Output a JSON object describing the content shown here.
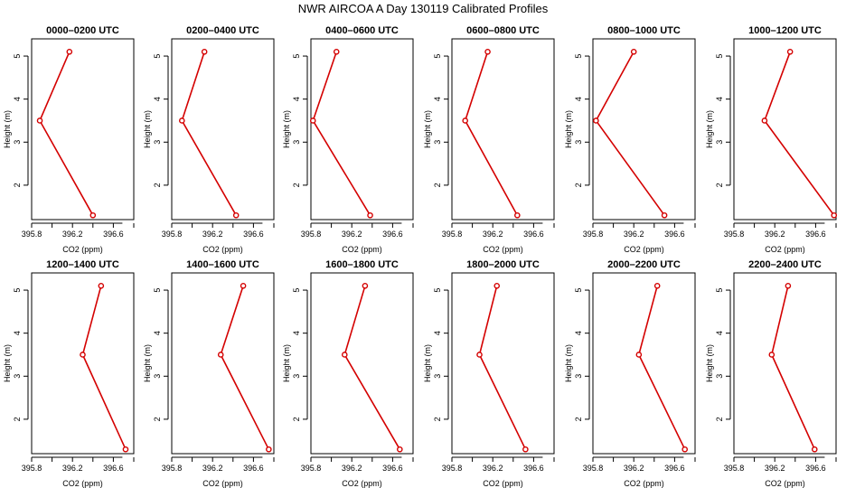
{
  "figure": {
    "title": "NWR AIRCOA A  Day 130119  Calibrated Profiles",
    "series_color": "#d40000"
  },
  "chart_data": [
    {
      "type": "line",
      "title": "0000–0200 UTC",
      "xlabel": "CO2 (ppm)",
      "ylabel": "Height (m)",
      "x_ticks": [
        "395.8",
        "396.2",
        "396.6"
      ],
      "y_ticks": [
        "2",
        "3",
        "4",
        "5"
      ],
      "xlim": [
        395.8,
        396.8
      ],
      "ylim": [
        1.2,
        5.4
      ],
      "x": [
        396.4,
        395.88,
        396.17
      ],
      "y": [
        1.3,
        3.5,
        5.1
      ]
    },
    {
      "type": "line",
      "title": "0200–0400 UTC",
      "xlabel": "CO2 (ppm)",
      "ylabel": "Height (m)",
      "x_ticks": [
        "395.8",
        "396.2",
        "396.6"
      ],
      "y_ticks": [
        "2",
        "3",
        "4",
        "5"
      ],
      "xlim": [
        395.8,
        396.8
      ],
      "ylim": [
        1.2,
        5.4
      ],
      "x": [
        396.43,
        395.9,
        396.12
      ],
      "y": [
        1.3,
        3.5,
        5.1
      ]
    },
    {
      "type": "line",
      "title": "0400–0600 UTC",
      "xlabel": "CO2 (ppm)",
      "ylabel": "Height (m)",
      "x_ticks": [
        "395.8",
        "396.2",
        "396.6"
      ],
      "y_ticks": [
        "2",
        "3",
        "4",
        "5"
      ],
      "xlim": [
        395.8,
        396.8
      ],
      "ylim": [
        1.2,
        5.4
      ],
      "x": [
        396.38,
        395.82,
        396.05
      ],
      "y": [
        1.3,
        3.5,
        5.1
      ]
    },
    {
      "type": "line",
      "title": "0600–0800 UTC",
      "xlabel": "CO2 (ppm)",
      "ylabel": "Height (m)",
      "x_ticks": [
        "395.8",
        "396.2",
        "396.6"
      ],
      "y_ticks": [
        "2",
        "3",
        "4",
        "5"
      ],
      "xlim": [
        395.8,
        396.8
      ],
      "ylim": [
        1.2,
        5.4
      ],
      "x": [
        396.44,
        395.93,
        396.15
      ],
      "y": [
        1.3,
        3.5,
        5.1
      ]
    },
    {
      "type": "line",
      "title": "0800–1000 UTC",
      "xlabel": "CO2 (ppm)",
      "ylabel": "Height (m)",
      "x_ticks": [
        "395.8",
        "396.2",
        "396.6"
      ],
      "y_ticks": [
        "2",
        "3",
        "4",
        "5"
      ],
      "xlim": [
        395.8,
        396.8
      ],
      "ylim": [
        1.2,
        5.4
      ],
      "x": [
        396.5,
        395.83,
        396.2
      ],
      "y": [
        1.3,
        3.5,
        5.1
      ]
    },
    {
      "type": "line",
      "title": "1000–1200 UTC",
      "xlabel": "CO2 (ppm)",
      "ylabel": "Height (m)",
      "x_ticks": [
        "395.8",
        "396.2",
        "396.6"
      ],
      "y_ticks": [
        "2",
        "3",
        "4",
        "5"
      ],
      "xlim": [
        395.8,
        396.8
      ],
      "ylim": [
        1.2,
        5.4
      ],
      "x": [
        396.78,
        396.1,
        396.35
      ],
      "y": [
        1.3,
        3.5,
        5.1
      ]
    },
    {
      "type": "line",
      "title": "1200–1400 UTC",
      "xlabel": "CO2 (ppm)",
      "ylabel": "Height (m)",
      "x_ticks": [
        "395.8",
        "396.2",
        "396.6"
      ],
      "y_ticks": [
        "2",
        "3",
        "4",
        "5"
      ],
      "xlim": [
        395.8,
        396.8
      ],
      "ylim": [
        1.2,
        5.4
      ],
      "x": [
        396.72,
        396.3,
        396.48
      ],
      "y": [
        1.3,
        3.5,
        5.1
      ]
    },
    {
      "type": "line",
      "title": "1400–1600 UTC",
      "xlabel": "CO2 (ppm)",
      "ylabel": "Height (m)",
      "x_ticks": [
        "395.8",
        "396.2",
        "396.6"
      ],
      "y_ticks": [
        "2",
        "3",
        "4",
        "5"
      ],
      "xlim": [
        395.8,
        396.8
      ],
      "ylim": [
        1.2,
        5.4
      ],
      "x": [
        396.75,
        396.28,
        396.5
      ],
      "y": [
        1.3,
        3.5,
        5.1
      ]
    },
    {
      "type": "line",
      "title": "1600–1800 UTC",
      "xlabel": "CO2 (ppm)",
      "ylabel": "Height (m)",
      "x_ticks": [
        "395.8",
        "396.2",
        "396.6"
      ],
      "y_ticks": [
        "2",
        "3",
        "4",
        "5"
      ],
      "xlim": [
        395.8,
        396.8
      ],
      "ylim": [
        1.2,
        5.4
      ],
      "x": [
        396.67,
        396.13,
        396.33
      ],
      "y": [
        1.3,
        3.5,
        5.1
      ]
    },
    {
      "type": "line",
      "title": "1800–2000 UTC",
      "xlabel": "CO2 (ppm)",
      "ylabel": "Height (m)",
      "x_ticks": [
        "395.8",
        "396.2",
        "396.6"
      ],
      "y_ticks": [
        "2",
        "3",
        "4",
        "5"
      ],
      "xlim": [
        395.8,
        396.8
      ],
      "ylim": [
        1.2,
        5.4
      ],
      "x": [
        396.52,
        396.07,
        396.24
      ],
      "y": [
        1.3,
        3.5,
        5.1
      ]
    },
    {
      "type": "line",
      "title": "2000–2200 UTC",
      "xlabel": "CO2 (ppm)",
      "ylabel": "Height (m)",
      "x_ticks": [
        "395.8",
        "396.2",
        "396.6"
      ],
      "y_ticks": [
        "2",
        "3",
        "4",
        "5"
      ],
      "xlim": [
        395.8,
        396.8
      ],
      "ylim": [
        1.2,
        5.4
      ],
      "x": [
        396.7,
        396.25,
        396.43
      ],
      "y": [
        1.3,
        3.5,
        5.1
      ]
    },
    {
      "type": "line",
      "title": "2200–2400 UTC",
      "xlabel": "CO2 (ppm)",
      "ylabel": "Height (m)",
      "x_ticks": [
        "395.8",
        "396.2",
        "396.6"
      ],
      "y_ticks": [
        "2",
        "3",
        "4",
        "5"
      ],
      "xlim": [
        395.8,
        396.8
      ],
      "ylim": [
        1.2,
        5.4
      ],
      "x": [
        396.59,
        396.17,
        396.33
      ],
      "y": [
        1.3,
        3.5,
        5.1
      ]
    }
  ]
}
